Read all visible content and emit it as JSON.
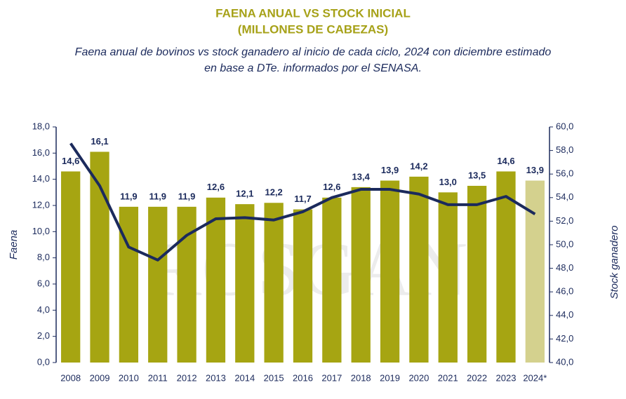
{
  "chart_data": {
    "type": "bar",
    "title": [
      "FAENA ANUAL VS STOCK INICIAL",
      "(MILLONES DE CABEZAS)"
    ],
    "subtitle": [
      "Faena anual de bovinos vs stock ganadero al inicio de cada ciclo, 2024 con diciembre estimado",
      "en base a DTe. informados por el SENASA."
    ],
    "watermark": "ROSGAN",
    "ylabel": "Faena",
    "y2label": "Stock ganadero",
    "categories": [
      "2008",
      "2009",
      "2010",
      "2011",
      "2012",
      "2013",
      "2014",
      "2015",
      "2016",
      "2017",
      "2018",
      "2019",
      "2020",
      "2021",
      "2022",
      "2023",
      "2024*"
    ],
    "series": [
      {
        "type": "bar",
        "axis": "y",
        "colors": [
          "#a6a512",
          "#a6a512",
          "#a6a512",
          "#a6a512",
          "#a6a512",
          "#a6a512",
          "#a6a512",
          "#a6a512",
          "#a6a512",
          "#a6a512",
          "#a6a512",
          "#a6a512",
          "#a6a512",
          "#a6a512",
          "#a6a512",
          "#a6a512",
          "#d4d18e"
        ],
        "values": [
          14.6,
          16.1,
          11.9,
          11.9,
          11.9,
          12.6,
          12.1,
          12.2,
          11.7,
          12.6,
          13.4,
          13.9,
          14.2,
          13.0,
          13.5,
          14.6,
          13.9
        ],
        "value_labels": [
          "14,6",
          "16,1",
          "11,9",
          "11,9",
          "11,9",
          "12,6",
          "12,1",
          "12,2",
          "11,7",
          "12,6",
          "13,4",
          "13,9",
          "14,2",
          "13,0",
          "13,5",
          "14,6",
          "13,9"
        ]
      },
      {
        "type": "line",
        "axis": "y2",
        "color": "#1b2a5c",
        "values": [
          58.6,
          55.0,
          49.8,
          48.7,
          50.8,
          52.2,
          52.3,
          52.1,
          52.8,
          54.0,
          54.7,
          54.7,
          54.3,
          53.4,
          53.4,
          54.1,
          52.6
        ]
      }
    ],
    "ylim": [
      0,
      18
    ],
    "yticks": [
      {
        "value": 0,
        "label": "0,0"
      },
      {
        "value": 2,
        "label": "2,0"
      },
      {
        "value": 4,
        "label": "4,0"
      },
      {
        "value": 6,
        "label": "6,0"
      },
      {
        "value": 8,
        "label": "8,0"
      },
      {
        "value": 10,
        "label": "10,0"
      },
      {
        "value": 12,
        "label": "12,0"
      },
      {
        "value": 14,
        "label": "14,0"
      },
      {
        "value": 16,
        "label": "16,0"
      },
      {
        "value": 18,
        "label": "18,0"
      }
    ],
    "y2lim": [
      40,
      60
    ],
    "y2ticks": [
      {
        "value": 40,
        "label": "40,0"
      },
      {
        "value": 42,
        "label": "42,0"
      },
      {
        "value": 44,
        "label": "44,0"
      },
      {
        "value": 46,
        "label": "46,0"
      },
      {
        "value": 48,
        "label": "48,0"
      },
      {
        "value": 50,
        "label": "50,0"
      },
      {
        "value": 52,
        "label": "52,0"
      },
      {
        "value": 54,
        "label": "54,0"
      },
      {
        "value": 56,
        "label": "56,0"
      },
      {
        "value": 58,
        "label": "58,0"
      },
      {
        "value": 60,
        "label": "60,0"
      }
    ]
  }
}
